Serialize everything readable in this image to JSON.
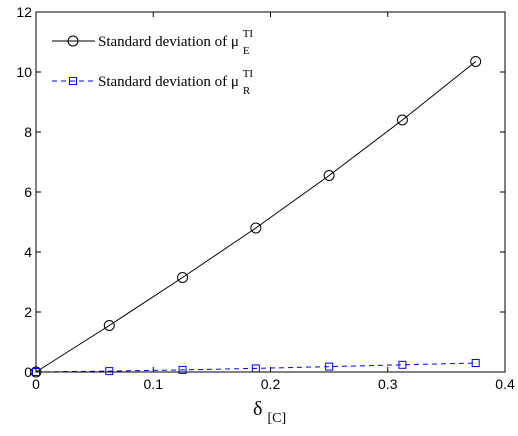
{
  "chart_data": {
    "type": "line",
    "x": [
      0,
      0.0625,
      0.125,
      0.1875,
      0.25,
      0.3125,
      0.375
    ],
    "series": [
      {
        "name": "Standard deviation of μ_E^TI",
        "legend_prefix": "Standard deviation of μ",
        "legend_sub": "E",
        "legend_sup": "TI",
        "values": [
          0.0,
          1.55,
          3.15,
          4.8,
          6.55,
          8.4,
          10.35
        ],
        "color": "#000000",
        "linestyle": "solid",
        "marker": "circle"
      },
      {
        "name": "Standard deviation of μ_R^TI",
        "legend_prefix": "Standard deviation of μ",
        "legend_sub": "R",
        "legend_sup": "TI",
        "values": [
          0.0,
          0.03,
          0.07,
          0.12,
          0.18,
          0.24,
          0.3
        ],
        "color": "#0000ff",
        "linestyle": "dashed",
        "marker": "square"
      }
    ],
    "xlim": [
      0,
      0.4
    ],
    "ylim": [
      0,
      12
    ],
    "xticks": [
      "0",
      "0.1",
      "0.2",
      "0.3",
      "0.4"
    ],
    "yticks": [
      "0",
      "2",
      "4",
      "6",
      "8",
      "10",
      "12"
    ],
    "xlabel_main": "δ",
    "xlabel_sub": "[C]",
    "ylabel": "",
    "legend_position": "top-left",
    "grid": false
  }
}
